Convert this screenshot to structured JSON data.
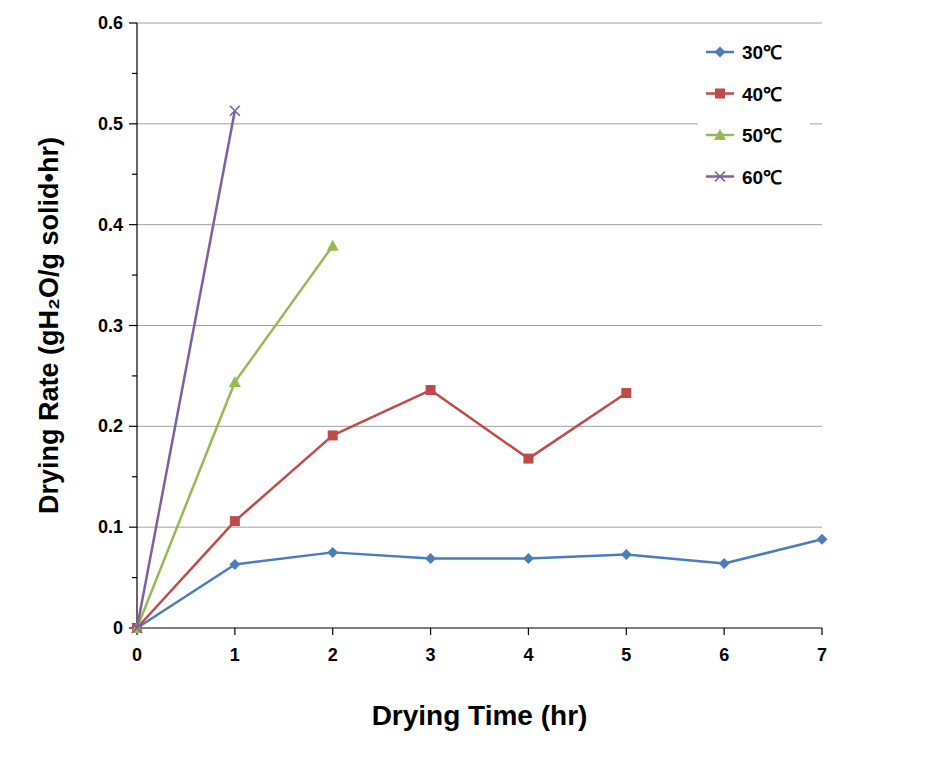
{
  "chart_data": {
    "type": "line",
    "x_label": "Drying Time (hr)",
    "y_label": "Drying Rate (gH₂O/g solid•hr)",
    "xlim": [
      0,
      7
    ],
    "xticks": [
      0,
      1,
      2,
      3,
      4,
      5,
      6,
      7
    ],
    "ylim": [
      0,
      0.6
    ],
    "yticks": [
      0,
      0.1,
      0.2,
      0.3,
      0.4,
      0.5,
      0.6
    ],
    "grid": true,
    "legend": "upper right",
    "series": [
      {
        "name": "30℃",
        "color": "#4a7ebb",
        "marker": "diamond",
        "x": [
          0,
          1,
          2,
          3,
          4,
          5,
          6,
          7
        ],
        "values": [
          0,
          0.063,
          0.075,
          0.069,
          0.069,
          0.073,
          0.064,
          0.088
        ]
      },
      {
        "name": "40℃",
        "color": "#be4b48",
        "marker": "square",
        "x": [
          0,
          1,
          2,
          3,
          4,
          5
        ],
        "values": [
          0,
          0.106,
          0.191,
          0.236,
          0.168,
          0.233
        ]
      },
      {
        "name": "50℃",
        "color": "#98b954",
        "marker": "triangle",
        "x": [
          0,
          1,
          2
        ],
        "values": [
          0,
          0.244,
          0.379
        ]
      },
      {
        "name": "60℃",
        "color": "#7d60a0",
        "marker": "x",
        "x": [
          0,
          1
        ],
        "values": [
          0,
          0.513
        ]
      }
    ]
  }
}
